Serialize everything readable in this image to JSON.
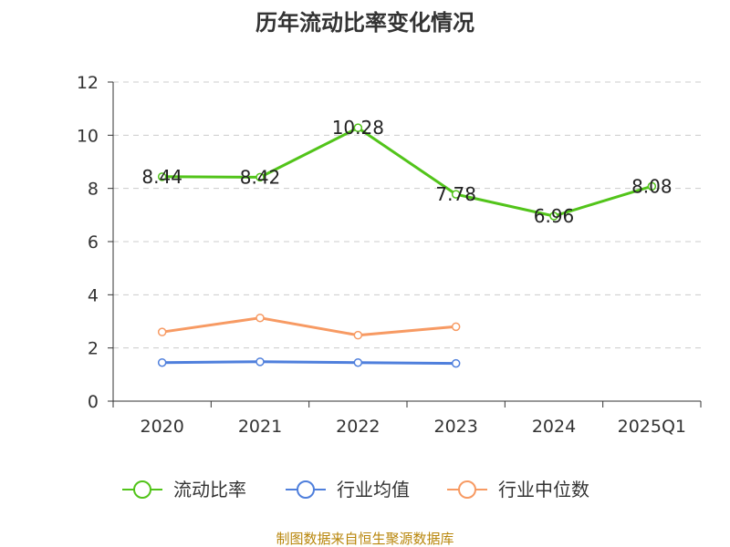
{
  "chart_data": {
    "type": "line",
    "title": "历年流动比率变化情况",
    "categories": [
      "2020",
      "2021",
      "2022",
      "2023",
      "2024",
      "2025Q1"
    ],
    "ylim": [
      0,
      12
    ],
    "yticks": [
      0,
      2,
      4,
      6,
      8,
      10,
      12
    ],
    "grid": true,
    "legend_position": "bottom",
    "series": [
      {
        "name": "流动比率",
        "color": "#52c41a",
        "values": [
          8.44,
          8.42,
          10.28,
          7.78,
          6.96,
          8.08
        ],
        "show_labels": true
      },
      {
        "name": "行业均值",
        "color": "#4f7fdc",
        "values": [
          1.45,
          1.48,
          1.45,
          1.42,
          null,
          null
        ],
        "show_labels": false
      },
      {
        "name": "行业中位数",
        "color": "#f79a63",
        "values": [
          2.6,
          3.13,
          2.48,
          2.8,
          null,
          null
        ],
        "show_labels": false
      }
    ],
    "source": "制图数据来自恒生聚源数据库"
  }
}
